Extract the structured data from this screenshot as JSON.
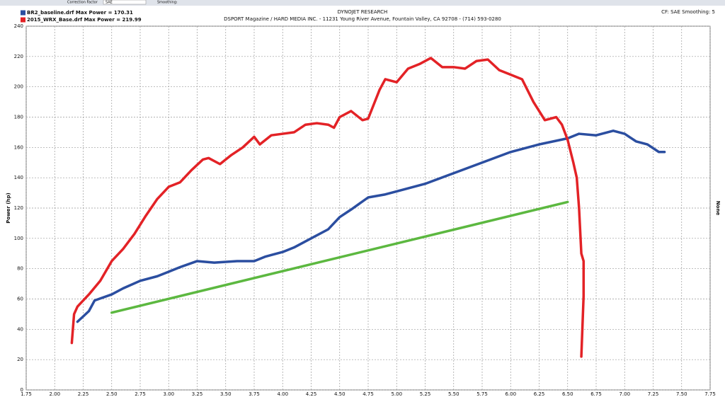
{
  "toolbar": {
    "correction_factor_label": "Correction Factor",
    "correction_factor": "SAE",
    "smoothing_label": "Smoothing:"
  },
  "chart_data": {
    "type": "line",
    "title": "DYNOJET RESEARCH",
    "subtitle": "DSPORT Magazine / HARD MEDIA INC. - 11231 Young River Avenue, Fountain Valley, CA 92708 - (714) 593-0280",
    "annotation": "CF: SAE  Smoothing: 5",
    "y_label": "Power (hp)",
    "y2_label": "None",
    "grid": true,
    "legend": "top-left",
    "xlim": [
      1.75,
      7.75
    ],
    "xticks": [
      {
        "value": 1.75,
        "label": "1.75"
      },
      {
        "value": 2,
        "label": "2.00"
      },
      {
        "value": 2.25,
        "label": "2.25"
      },
      {
        "value": 2.5,
        "label": "2.50"
      },
      {
        "value": 2.75,
        "label": "2.75"
      },
      {
        "value": 3,
        "label": "3.00"
      },
      {
        "value": 3.25,
        "label": "3.25"
      },
      {
        "value": 3.5,
        "label": "3.50"
      },
      {
        "value": 3.75,
        "label": "3.75"
      },
      {
        "value": 4,
        "label": "4.00"
      },
      {
        "value": 4.25,
        "label": "4.25"
      },
      {
        "value": 4.5,
        "label": "4.50"
      },
      {
        "value": 4.75,
        "label": "4.75"
      },
      {
        "value": 5,
        "label": "5.00"
      },
      {
        "value": 5.25,
        "label": "5.25"
      },
      {
        "value": 5.5,
        "label": "5.50"
      },
      {
        "value": 5.75,
        "label": "5.75"
      },
      {
        "value": 6,
        "label": "6.00"
      },
      {
        "value": 6.25,
        "label": "6.25"
      },
      {
        "value": 6.5,
        "label": "6.50"
      },
      {
        "value": 6.75,
        "label": "6.75"
      },
      {
        "value": 7,
        "label": "7.00"
      },
      {
        "value": 7.25,
        "label": "7.25"
      },
      {
        "value": 7.5,
        "label": "7.50"
      },
      {
        "value": 7.75,
        "label": "7.75"
      }
    ],
    "ylim": [
      0,
      240
    ],
    "yticks": [
      0,
      20,
      40,
      60,
      80,
      100,
      120,
      140,
      160,
      180,
      200,
      220,
      240
    ],
    "series": [
      {
        "name": "BR2_baseline.drf Max Power = 170.31",
        "color": "#2b4ea0",
        "x": [
          2.2,
          2.3,
          2.35,
          2.5,
          2.6,
          2.75,
          2.9,
          3.0,
          3.1,
          3.25,
          3.4,
          3.6,
          3.75,
          3.85,
          4.0,
          4.1,
          4.25,
          4.4,
          4.5,
          4.6,
          4.75,
          4.9,
          5.0,
          5.25,
          5.5,
          5.75,
          6.0,
          6.25,
          6.5,
          6.6,
          6.75,
          6.9,
          7.0,
          7.1,
          7.2,
          7.3,
          7.35
        ],
        "values": [
          45,
          52,
          59,
          63,
          67,
          72,
          75,
          78,
          81,
          85,
          84,
          85,
          85,
          88,
          91,
          94,
          100,
          106,
          114,
          119,
          127,
          129,
          131,
          136,
          143,
          150,
          157,
          162,
          166,
          169,
          168,
          171,
          169,
          164,
          162,
          157,
          157
        ]
      },
      {
        "name": "2015_WRX_Base.drf Max Power = 219.99",
        "color": "#e32226",
        "x": [
          2.15,
          2.17,
          2.2,
          2.3,
          2.4,
          2.5,
          2.6,
          2.7,
          2.8,
          2.9,
          3.0,
          3.1,
          3.2,
          3.3,
          3.35,
          3.45,
          3.55,
          3.65,
          3.75,
          3.8,
          3.9,
          4.0,
          4.1,
          4.2,
          4.3,
          4.4,
          4.45,
          4.5,
          4.6,
          4.7,
          4.75,
          4.85,
          4.9,
          5.0,
          5.1,
          5.2,
          5.3,
          5.4,
          5.5,
          5.6,
          5.7,
          5.8,
          5.9,
          6.0,
          6.1,
          6.2,
          6.3,
          6.4,
          6.45,
          6.5,
          6.55,
          6.58,
          6.6,
          6.62,
          6.64,
          6.64,
          6.62
        ],
        "values": [
          31,
          50,
          55,
          63,
          72,
          85,
          93,
          103,
          115,
          126,
          134,
          137,
          145,
          152,
          153,
          149,
          155,
          160,
          167,
          162,
          168,
          169,
          170,
          175,
          176,
          175,
          173,
          180,
          184,
          178,
          179,
          198,
          205,
          203,
          212,
          215,
          219,
          213,
          213,
          212,
          217,
          218,
          211,
          208,
          205,
          190,
          178,
          180,
          175,
          165,
          150,
          140,
          120,
          90,
          85,
          62,
          22
        ]
      },
      {
        "color": "#5cb840",
        "x": [
          2.5,
          6.5
        ],
        "values": [
          51,
          124
        ]
      }
    ]
  }
}
